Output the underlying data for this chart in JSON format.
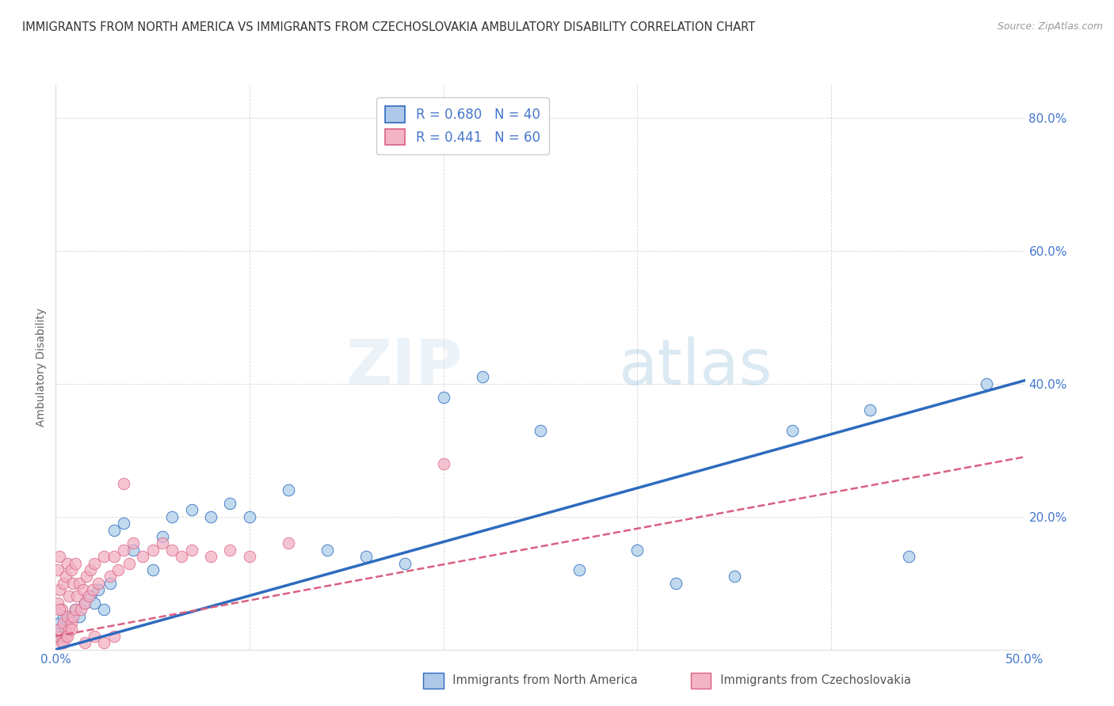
{
  "title": "IMMIGRANTS FROM NORTH AMERICA VS IMMIGRANTS FROM CZECHOSLOVAKIA AMBULATORY DISABILITY CORRELATION CHART",
  "source": "Source: ZipAtlas.com",
  "ylabel": "Ambulatory Disability",
  "xlim": [
    0.0,
    0.5
  ],
  "ylim": [
    0.0,
    0.85
  ],
  "xtick_vals": [
    0.0,
    0.1,
    0.2,
    0.3,
    0.4,
    0.5
  ],
  "xtick_labels": [
    "0.0%",
    "",
    "",
    "",
    "",
    "50.0%"
  ],
  "ytick_vals": [
    0.2,
    0.4,
    0.6,
    0.8
  ],
  "ytick_labels": [
    "20.0%",
    "40.0%",
    "60.0%",
    "80.0%"
  ],
  "legend_color1": "#adc8e8",
  "legend_color2": "#f4b4c8",
  "line_color_blue": "#2d6bbf",
  "line_color_pink": "#d96080",
  "scatter_color_blue": "#b8d4ec",
  "scatter_color_pink": "#f2b0c4",
  "tick_color": "#4477cc",
  "legend1_label": "R = 0.680   N = 40",
  "legend2_label": "R = 0.441   N = 60",
  "footer_label1": "Immigrants from North America",
  "footer_label2": "Immigrants from Czechoslovakia",
  "blue_line_x0": 0.0,
  "blue_line_y0": 0.0,
  "blue_line_x1": 0.5,
  "blue_line_y1": 0.405,
  "pink_line_x0": 0.0,
  "pink_line_y0": 0.02,
  "pink_line_x1": 0.5,
  "pink_line_y1": 0.29,
  "blue_x": [
    0.001,
    0.002,
    0.003,
    0.004,
    0.005,
    0.006,
    0.008,
    0.01,
    0.012,
    0.015,
    0.018,
    0.02,
    0.022,
    0.025,
    0.028,
    0.03,
    0.035,
    0.04,
    0.05,
    0.055,
    0.06,
    0.07,
    0.08,
    0.09,
    0.1,
    0.12,
    0.14,
    0.16,
    0.18,
    0.2,
    0.22,
    0.25,
    0.27,
    0.3,
    0.32,
    0.35,
    0.38,
    0.42,
    0.44,
    0.48
  ],
  "blue_y": [
    0.03,
    0.04,
    0.02,
    0.05,
    0.03,
    0.04,
    0.05,
    0.06,
    0.05,
    0.07,
    0.08,
    0.07,
    0.09,
    0.06,
    0.1,
    0.18,
    0.19,
    0.15,
    0.12,
    0.17,
    0.2,
    0.21,
    0.2,
    0.22,
    0.2,
    0.24,
    0.15,
    0.14,
    0.13,
    0.38,
    0.41,
    0.33,
    0.12,
    0.15,
    0.1,
    0.11,
    0.33,
    0.36,
    0.14,
    0.4
  ],
  "pink_x": [
    0.001,
    0.001,
    0.001,
    0.002,
    0.002,
    0.002,
    0.003,
    0.003,
    0.004,
    0.004,
    0.005,
    0.005,
    0.006,
    0.006,
    0.007,
    0.007,
    0.008,
    0.008,
    0.009,
    0.009,
    0.01,
    0.01,
    0.011,
    0.012,
    0.013,
    0.014,
    0.015,
    0.016,
    0.017,
    0.018,
    0.019,
    0.02,
    0.022,
    0.025,
    0.028,
    0.03,
    0.032,
    0.035,
    0.038,
    0.04,
    0.045,
    0.05,
    0.055,
    0.06,
    0.065,
    0.07,
    0.08,
    0.09,
    0.1,
    0.12,
    0.002,
    0.004,
    0.006,
    0.008,
    0.015,
    0.02,
    0.025,
    0.03,
    0.035,
    0.2
  ],
  "pink_y": [
    0.02,
    0.07,
    0.12,
    0.03,
    0.09,
    0.14,
    0.01,
    0.06,
    0.04,
    0.1,
    0.02,
    0.11,
    0.05,
    0.13,
    0.03,
    0.08,
    0.04,
    0.12,
    0.05,
    0.1,
    0.06,
    0.13,
    0.08,
    0.1,
    0.06,
    0.09,
    0.07,
    0.11,
    0.08,
    0.12,
    0.09,
    0.13,
    0.1,
    0.14,
    0.11,
    0.14,
    0.12,
    0.15,
    0.13,
    0.16,
    0.14,
    0.15,
    0.16,
    0.15,
    0.14,
    0.15,
    0.14,
    0.15,
    0.14,
    0.16,
    0.06,
    0.01,
    0.02,
    0.03,
    0.01,
    0.02,
    0.01,
    0.02,
    0.25,
    0.28
  ]
}
